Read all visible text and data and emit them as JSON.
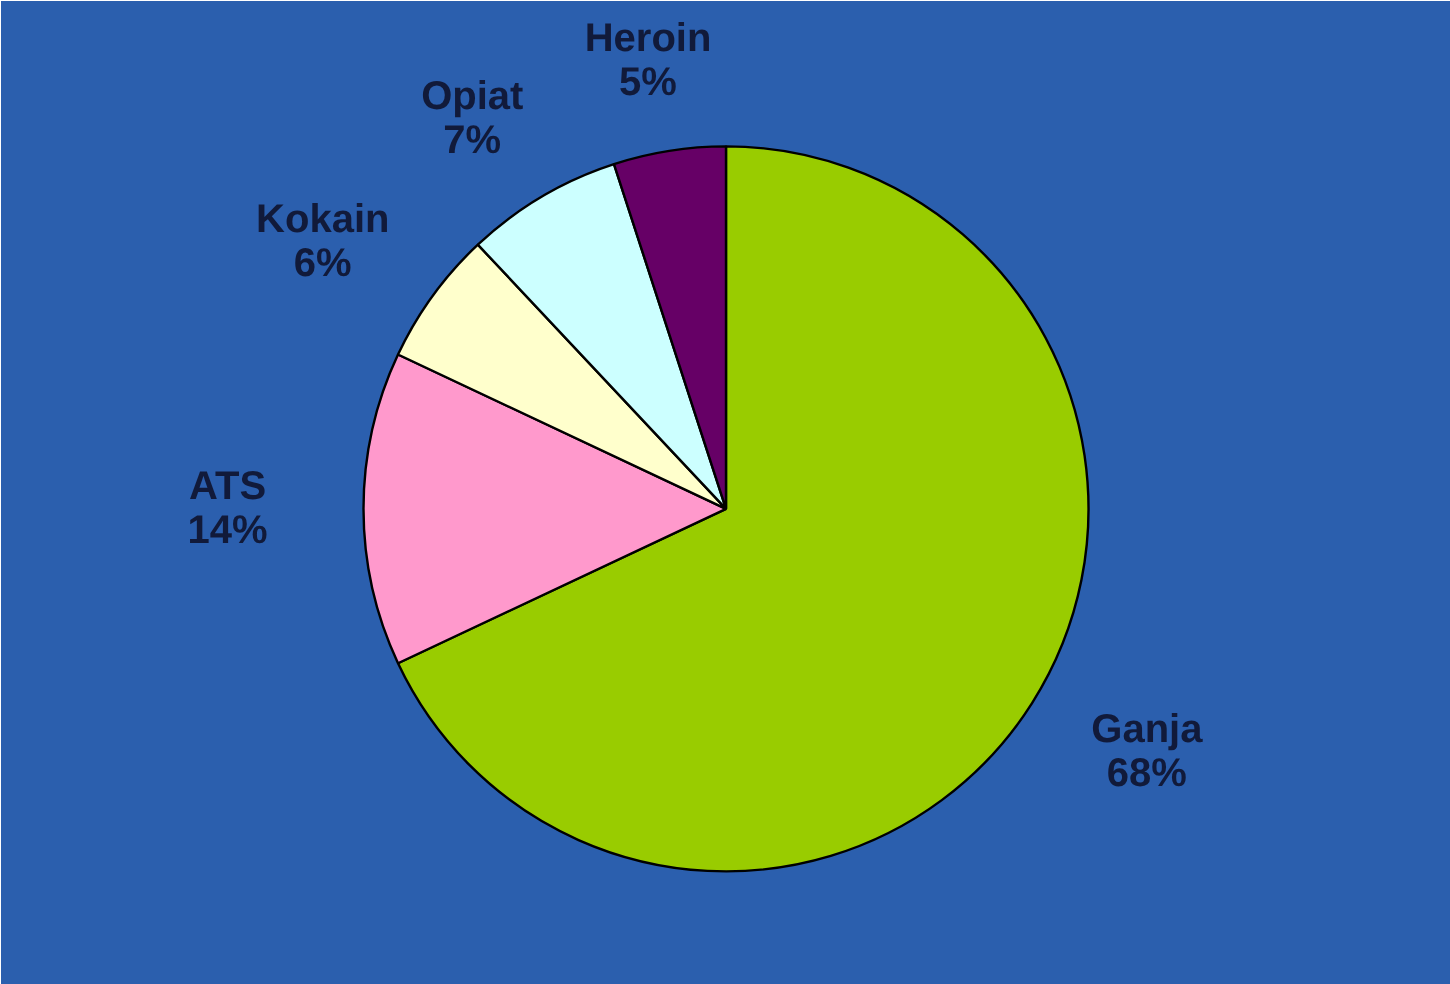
{
  "chart_data": {
    "type": "pie",
    "categories": [
      "Ganja",
      "ATS",
      "Kokain",
      "Opiat",
      "Heroin"
    ],
    "values": [
      68,
      14,
      6,
      7,
      5
    ],
    "colors": [
      "#99cc00",
      "#ff99cc",
      "#ffffcc",
      "#ccffff",
      "#660066"
    ],
    "value_labels": [
      "68%",
      "14%",
      "6%",
      "7%",
      "5%"
    ]
  }
}
